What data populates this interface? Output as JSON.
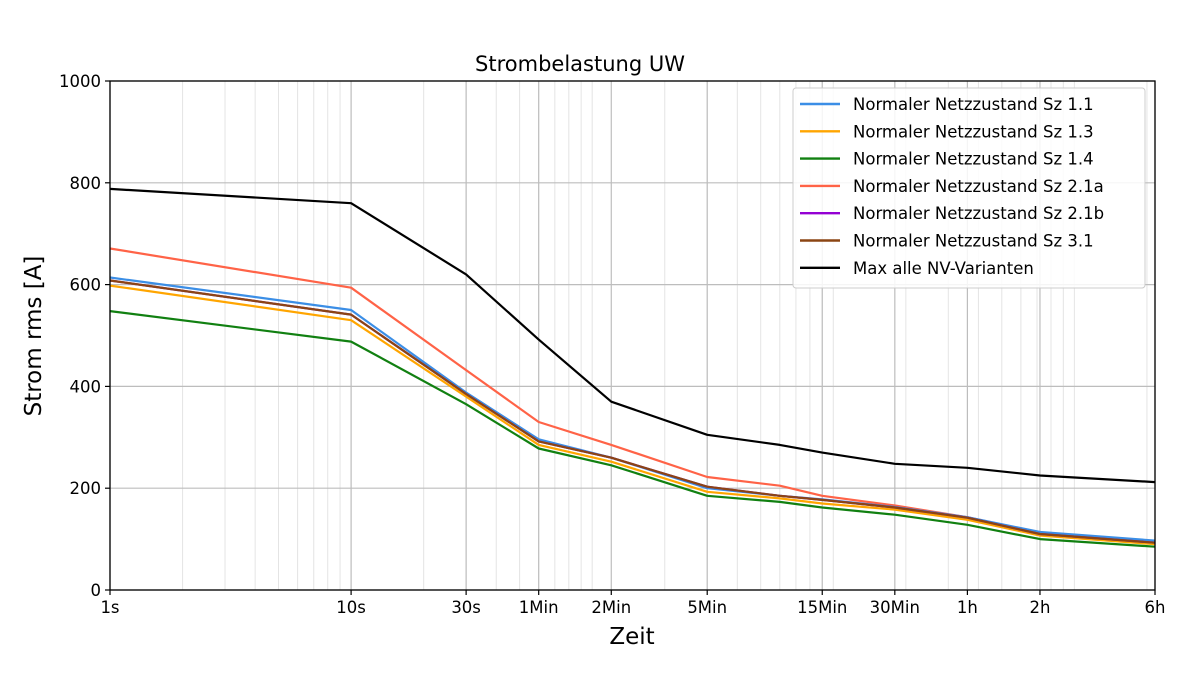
{
  "chart_data": {
    "type": "line",
    "title": "Strombelastung UW",
    "xlabel": "Zeit",
    "ylabel": "Strom rms [A]",
    "xscale": "log",
    "x_unit_seconds": [
      1,
      10,
      30,
      60,
      120,
      300,
      600,
      900,
      1800,
      3600,
      7200,
      21600
    ],
    "xlim": [
      1,
      21600
    ],
    "ylim": [
      0,
      1000
    ],
    "x_ticks": [
      {
        "value": 1,
        "label": "1s"
      },
      {
        "value": 10,
        "label": "10s"
      },
      {
        "value": 30,
        "label": "30s"
      },
      {
        "value": 60,
        "label": "1Min"
      },
      {
        "value": 120,
        "label": "2Min"
      },
      {
        "value": 300,
        "label": "5Min"
      },
      {
        "value": 900,
        "label": "15Min"
      },
      {
        "value": 1800,
        "label": "30Min"
      },
      {
        "value": 3600,
        "label": "1h"
      },
      {
        "value": 7200,
        "label": "2h"
      },
      {
        "value": 21600,
        "label": "6h"
      }
    ],
    "y_ticks": [
      {
        "value": 0,
        "label": "0"
      },
      {
        "value": 200,
        "label": "200"
      },
      {
        "value": 400,
        "label": "400"
      },
      {
        "value": 600,
        "label": "600"
      },
      {
        "value": 800,
        "label": "800"
      },
      {
        "value": 1000,
        "label": "1000"
      }
    ],
    "grid": true,
    "legend_position": "top-right",
    "series": [
      {
        "name": "Normaler Netzzustand Sz 1.1",
        "color": "#3b8ee6",
        "values": [
          614,
          550,
          388,
          296,
          260,
          200,
          185,
          178,
          163,
          143,
          114,
          97
        ]
      },
      {
        "name": "Normaler Netzzustand Sz 1.3",
        "color": "#ffa500",
        "values": [
          598,
          530,
          380,
          285,
          252,
          193,
          180,
          170,
          158,
          138,
          107,
          90
        ]
      },
      {
        "name": "Normaler Netzzustand Sz 1.4",
        "color": "#118011",
        "values": [
          548,
          488,
          365,
          278,
          245,
          185,
          173,
          162,
          148,
          128,
          100,
          85
        ]
      },
      {
        "name": "Normaler Netzzustand Sz 2.1a",
        "color": "#ff6347",
        "values": [
          671,
          594,
          432,
          330,
          285,
          222,
          205,
          185,
          166,
          143,
          112,
          93
        ]
      },
      {
        "name": "Normaler Netzzustand Sz 2.1b",
        "color": "#9400d3",
        "values": [
          608,
          541,
          385,
          292,
          260,
          203,
          185,
          177,
          162,
          142,
          110,
          93
        ]
      },
      {
        "name": "Normaler Netzzustand Sz 3.1",
        "color": "#8b4513",
        "values": [
          608,
          541,
          385,
          292,
          260,
          203,
          185,
          177,
          162,
          142,
          110,
          93
        ]
      },
      {
        "name": "Max alle NV-Varianten",
        "color": "#000000",
        "values": [
          788,
          760,
          620,
          492,
          370,
          305,
          285,
          270,
          248,
          240,
          225,
          212
        ]
      }
    ]
  }
}
